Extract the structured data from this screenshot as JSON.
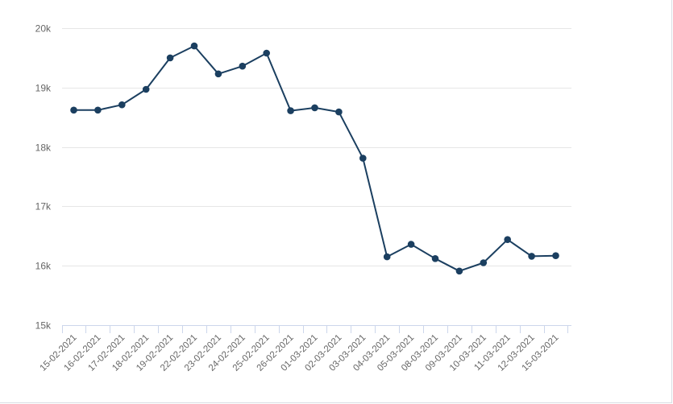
{
  "colors": {
    "series": "#1b3f60",
    "grid": "#e6e6e6",
    "axis": "#ccd6eb",
    "label": "#666666"
  },
  "chart_data": {
    "type": "line",
    "title": "",
    "xlabel": "",
    "ylabel": "",
    "ylim": [
      15000,
      20000
    ],
    "y_ticks": [
      15000,
      16000,
      17000,
      18000,
      19000,
      20000
    ],
    "y_tick_labels": [
      "15k",
      "16k",
      "17k",
      "18k",
      "19k",
      "20k"
    ],
    "grid": true,
    "categories": [
      "15-02-2021",
      "16-02-2021",
      "17-02-2021",
      "18-02-2021",
      "19-02-2021",
      "22-02-2021",
      "23-02-2021",
      "24-02-2021",
      "25-02-2021",
      "26-02-2021",
      "01-03-2021",
      "02-03-2021",
      "03-03-2021",
      "04-03-2021",
      "05-03-2021",
      "08-03-2021",
      "09-03-2021",
      "10-03-2021",
      "11-03-2021",
      "12-03-2021",
      "15-03-2021"
    ],
    "series": [
      {
        "values": [
          18620,
          18620,
          18710,
          18970,
          19500,
          19700,
          19230,
          19360,
          19580,
          18610,
          18660,
          18590,
          17810,
          16150,
          16360,
          16120,
          15910,
          16050,
          16440,
          16160,
          16170
        ]
      }
    ]
  }
}
